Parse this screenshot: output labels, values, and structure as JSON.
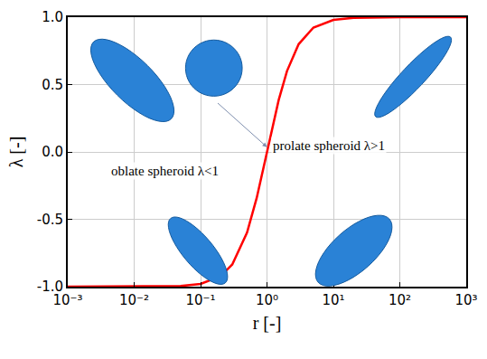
{
  "chart_data": {
    "type": "line",
    "x_label": "r [-]",
    "y_label": "λ [-]",
    "log": "x",
    "grid": true,
    "x": [
      0.001,
      0.01,
      0.05,
      0.1,
      0.2,
      0.3,
      0.5,
      0.7,
      1,
      1.5,
      2,
      3,
      5,
      10,
      20,
      100,
      1000
    ],
    "values": [
      -1.0,
      -1.0,
      -0.995,
      -0.98,
      -0.923,
      -0.835,
      -0.6,
      -0.342,
      0.0,
      0.385,
      0.6,
      0.8,
      0.923,
      0.98,
      0.995,
      1.0,
      1.0
    ],
    "color": "#ff0000",
    "xlim": [
      0.001,
      1000
    ],
    "ylim": [
      -1,
      1
    ],
    "xticks": [
      {
        "value": 0.001,
        "label": "10⁻³"
      },
      {
        "value": 0.01,
        "label": "10⁻²"
      },
      {
        "value": 0.1,
        "label": "10⁻¹"
      },
      {
        "value": 1,
        "label": "10⁰"
      },
      {
        "value": 10,
        "label": "10¹"
      },
      {
        "value": 100,
        "label": "10²"
      },
      {
        "value": 1000,
        "label": "10³"
      }
    ],
    "yticks": [
      {
        "value": -1,
        "label": "-1.0"
      },
      -0.5,
      {
        "value": 0,
        "label": "0.0"
      },
      0.5,
      {
        "value": 1,
        "label": "1.0"
      }
    ],
    "annotations": [
      {
        "text": "oblate spheroid λ<1",
        "x": 0.029,
        "y": -0.14
      },
      {
        "text": "prolate spheroid λ>1",
        "x": 8.5,
        "y": 0.05
      }
    ]
  }
}
